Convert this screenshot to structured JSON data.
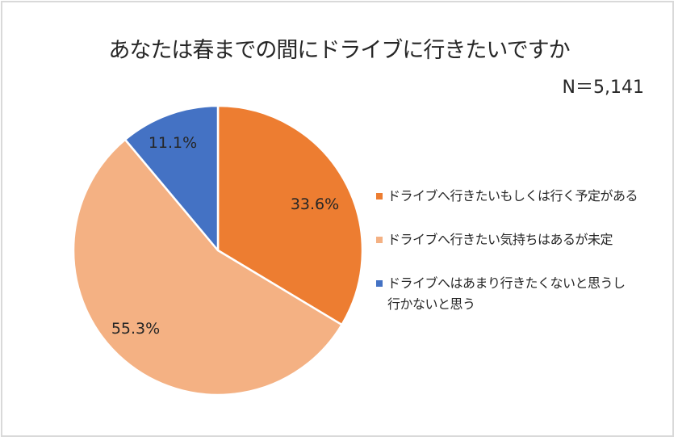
{
  "chart_data": {
    "type": "pie",
    "title": "あなたは春までの間にドライブに行きたいですか",
    "annotation": "N＝5,141",
    "categories": [
      "ドライブへ行きたいもしくは行く予定がある",
      "ドライブへ行きたい気持ちはあるが未定",
      "ドライブへはあまり行きたくないと思うし行かないと思う"
    ],
    "values": [
      33.6,
      55.3,
      11.1
    ],
    "value_labels": [
      "33.6%",
      "55.3%",
      "11.1%"
    ],
    "colors": [
      "#ed7d31",
      "#f4b183",
      "#4472c4"
    ],
    "legend_position": "right",
    "start_angle": "12 o'clock, clockwise"
  },
  "header": {
    "title": "あなたは春までの間にドライブに行きたいですか",
    "sample_size": "N＝5,141"
  },
  "legend": {
    "items": [
      {
        "label": "ドライブへ行きたいもしくは行く予定がある",
        "color": "#ed7d31"
      },
      {
        "label": "ドライブへ行きたい気持ちはあるが未定",
        "color": "#f4b183"
      },
      {
        "label": "ドライブへはあまり行きたくないと思うし\n行かないと思う",
        "color": "#4472c4"
      }
    ]
  },
  "labels": {
    "slice_0": "33.6%",
    "slice_1": "55.3%",
    "slice_2": "11.1%"
  }
}
